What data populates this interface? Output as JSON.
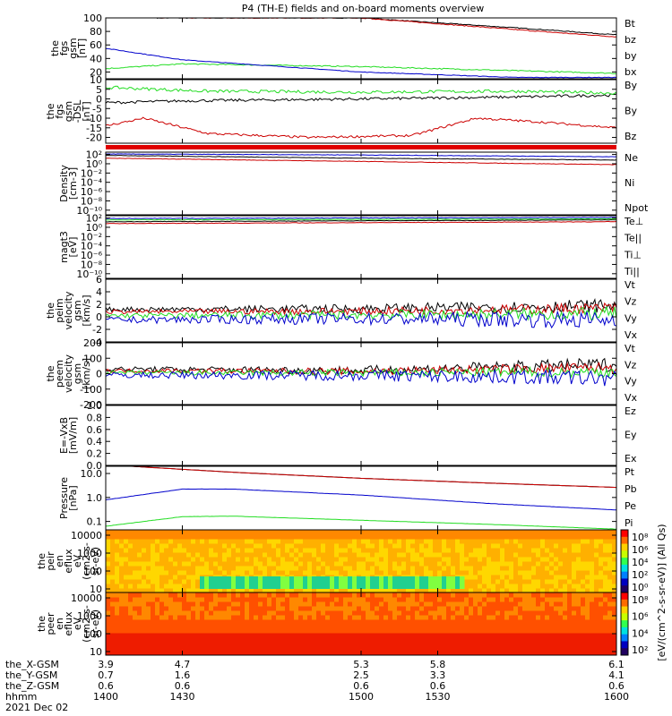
{
  "title": "P4 (TH-E) fields and on-board moments overview",
  "colors": {
    "black": "#000000",
    "red": "#cc0000",
    "green": "#22dd22",
    "blue": "#0000cc"
  },
  "chart_data": [
    {
      "type": "line",
      "id": "fgs",
      "ylabel": [
        "the",
        "fgs",
        "gsm",
        "[nT]"
      ],
      "ylim": [
        10,
        100
      ],
      "yticks": [
        20,
        40,
        60,
        80,
        100
      ],
      "yticklabels": [
        "20",
        "40",
        "60",
        "80",
        "100"
      ],
      "scale": "linear",
      "series": [
        {
          "name": "Bt",
          "color": "black",
          "points": [
            [
              1420,
              100
            ],
            [
              1500,
              100
            ],
            [
              1570,
              83
            ],
            [
              1600,
              75
            ]
          ],
          "noise": 0.6
        },
        {
          "name": "bz",
          "color": "red",
          "points": [
            [
              1420,
              100
            ],
            [
              1500,
              100
            ],
            [
              1570,
              80
            ],
            [
              1600,
              72
            ]
          ],
          "noise": 0.6
        },
        {
          "name": "by",
          "color": "green",
          "points": [
            [
              1400,
              25
            ],
            [
              1430,
              32
            ],
            [
              1500,
              28
            ],
            [
              1600,
              18
            ]
          ],
          "noise": 0.8
        },
        {
          "name": "bx",
          "color": "blue",
          "points": [
            [
              1400,
              55
            ],
            [
              1430,
              38
            ],
            [
              1500,
              20
            ],
            [
              1560,
              12
            ],
            [
              1600,
              12
            ]
          ],
          "noise": 0.4
        }
      ]
    },
    {
      "type": "line",
      "id": "fgs_dsl",
      "ylabel": [
        "the",
        "fgs",
        "gsm",
        "-DSL",
        "[nT]"
      ],
      "ylim": [
        -23,
        10
      ],
      "yticks": [
        -20,
        -15,
        -10,
        -5,
        0,
        5,
        10
      ],
      "yticklabels": [
        "-20",
        "-15",
        "-10",
        "-5",
        "0",
        "5",
        "10"
      ],
      "scale": "linear",
      "series": [
        {
          "name": "By",
          "color": "black",
          "points": [
            [
              1400,
              -2
            ],
            [
              1430,
              -1
            ],
            [
              1500,
              0
            ],
            [
              1560,
              1
            ],
            [
              1600,
              2
            ]
          ],
          "noise": 0.7
        },
        {
          "name": "By",
          "color": "green",
          "points": [
            [
              1400,
              6
            ],
            [
              1440,
              4
            ],
            [
              1500,
              3.5
            ],
            [
              1560,
              4
            ],
            [
              1600,
              3
            ]
          ],
          "noise": 0.8
        },
        {
          "name": "Bz",
          "color": "red",
          "points": [
            [
              1400,
              -14
            ],
            [
              1415,
              -10
            ],
            [
              1440,
              -18
            ],
            [
              1480,
              -20
            ],
            [
              1520,
              -19
            ],
            [
              1545,
              -10
            ],
            [
              1570,
              -12
            ],
            [
              1600,
              -15
            ]
          ],
          "noise": 0.6
        }
      ]
    },
    {
      "type": "line",
      "id": "density",
      "ylabel": [
        "Density",
        "[cm-3]"
      ],
      "ylim": [
        -11,
        2.5
      ],
      "logscale": true,
      "yticks": [
        2,
        0,
        -2,
        -4,
        -6,
        -8,
        -10
      ],
      "yticklabels": [
        "10²",
        "10⁰",
        "10⁻²",
        "10⁻⁴",
        "10⁻⁶",
        "10⁻⁸",
        "10⁻¹⁰"
      ],
      "series": [
        {
          "name": "Ne",
          "color": "red",
          "points": [
            [
              1400,
              1.2
            ],
            [
              1500,
              0.5
            ],
            [
              1600,
              -0.2
            ]
          ],
          "noise": 0.05
        },
        {
          "name": "Ni",
          "color": "black",
          "points": [
            [
              1400,
              1.8
            ],
            [
              1500,
              1.2
            ],
            [
              1600,
              0.8
            ]
          ],
          "noise": 0.05
        },
        {
          "name": "Npot",
          "color": "blue",
          "points": [
            [
              1400,
              2.1
            ],
            [
              1500,
              1.9
            ],
            [
              1600,
              1.5
            ]
          ],
          "noise": 0.05
        }
      ]
    },
    {
      "type": "line",
      "id": "magt3",
      "ylabel": [
        "magt3",
        "[eV]"
      ],
      "ylim": [
        -11,
        2.5
      ],
      "logscale": true,
      "yticks": [
        2,
        0,
        -2,
        -4,
        -6,
        -8,
        -10
      ],
      "yticklabels": [
        "10²",
        "10⁰",
        "10⁻²",
        "10⁻⁴",
        "10⁻⁶",
        "10⁻⁸",
        "10⁻¹⁰"
      ],
      "series": [
        {
          "name": "Te⊥",
          "color": "red",
          "points": [
            [
              1400,
              0.8
            ],
            [
              1500,
              1.0
            ],
            [
              1600,
              1.2
            ]
          ],
          "noise": 0.05
        },
        {
          "name": "Te||",
          "color": "black",
          "points": [
            [
              1400,
              1.2
            ],
            [
              1500,
              1.4
            ],
            [
              1600,
              1.6
            ]
          ],
          "noise": 0.05
        },
        {
          "name": "Ti⊥",
          "color": "blue",
          "points": [
            [
              1400,
              1.9
            ],
            [
              1500,
              2.0
            ],
            [
              1600,
              2.1
            ]
          ],
          "noise": 0.05
        },
        {
          "name": "Ti||",
          "color": "green",
          "points": [
            [
              1400,
              1.6
            ],
            [
              1500,
              1.7
            ],
            [
              1600,
              1.8
            ]
          ],
          "noise": 0.05
        }
      ]
    },
    {
      "type": "line",
      "id": "peim",
      "ylabel": [
        "the",
        "peim",
        "velocity",
        "gsm",
        "[km/s]"
      ],
      "ylim": [
        -4,
        6
      ],
      "yticks": [
        -4,
        -2,
        0,
        2,
        4,
        6
      ],
      "yticklabels": [
        "-4",
        "-2",
        "0",
        "2",
        "4",
        "6"
      ],
      "scale": "linear",
      "series": [
        {
          "name": "Vt",
          "color": "black",
          "points": [
            [
              1400,
              1.2
            ],
            [
              1500,
              1.3
            ],
            [
              1600,
              1.8
            ]
          ],
          "noise": 0.6
        },
        {
          "name": "Vz",
          "color": "red",
          "points": [
            [
              1400,
              0.8
            ],
            [
              1500,
              0.9
            ],
            [
              1600,
              1.4
            ]
          ],
          "noise": 0.5
        },
        {
          "name": "Vy",
          "color": "green",
          "points": [
            [
              1400,
              0.2
            ],
            [
              1500,
              0.3
            ],
            [
              1600,
              0.5
            ]
          ],
          "noise": 0.6
        },
        {
          "name": "Vx",
          "color": "blue",
          "points": [
            [
              1400,
              -0.5
            ],
            [
              1500,
              -0.3
            ],
            [
              1600,
              -0.5
            ]
          ],
          "noise": 0.8
        }
      ]
    },
    {
      "type": "line",
      "id": "peem",
      "ylabel": [
        "the",
        "peem",
        "velocity",
        "gsm",
        "[km/s]"
      ],
      "ylim": [
        -200,
        200
      ],
      "yticks": [
        -200,
        -100,
        0,
        100,
        200
      ],
      "yticklabels": [
        "-200",
        "-100",
        "0",
        "100",
        "200"
      ],
      "scale": "linear",
      "series": [
        {
          "name": "Vt",
          "color": "black",
          "points": [
            [
              1400,
              30
            ],
            [
              1500,
              20
            ],
            [
              1600,
              60
            ]
          ],
          "noise": 25
        },
        {
          "name": "Vz",
          "color": "red",
          "points": [
            [
              1400,
              20
            ],
            [
              1500,
              15
            ],
            [
              1600,
              40
            ]
          ],
          "noise": 20
        },
        {
          "name": "Vy",
          "color": "green",
          "points": [
            [
              1400,
              5
            ],
            [
              1500,
              5
            ],
            [
              1600,
              10
            ]
          ],
          "noise": 20
        },
        {
          "name": "Vx",
          "color": "blue",
          "points": [
            [
              1400,
              -10
            ],
            [
              1500,
              -10
            ],
            [
              1600,
              -30
            ]
          ],
          "noise": 30
        }
      ]
    },
    {
      "type": "line",
      "id": "efield",
      "ylabel": [
        "E=-VxB",
        "[mV/m]"
      ],
      "ylim": [
        0,
        1
      ],
      "yticks": [
        0,
        0.2,
        0.4,
        0.6,
        0.8,
        1.0
      ],
      "yticklabels": [
        "0.0",
        "0.2",
        "0.4",
        "0.6",
        "0.8",
        "1.0"
      ],
      "scale": "linear",
      "series": [
        {
          "name": "Ez",
          "color": "red",
          "points": []
        },
        {
          "name": "Ey",
          "color": "green",
          "points": []
        },
        {
          "name": "Ex",
          "color": "blue",
          "points": []
        }
      ]
    },
    {
      "type": "line",
      "id": "pressure",
      "ylabel": [
        "Pressure",
        "[nPa]"
      ],
      "ylim": [
        -1.35,
        1.3
      ],
      "logscale": true,
      "yticks": [
        1,
        0,
        -1
      ],
      "yticklabels": [
        "10.0",
        "1.0",
        "0.1"
      ],
      "series": [
        {
          "name": "Pt",
          "color": "black",
          "points": [
            [
              1410,
              1.3
            ],
            [
              1450,
              1.05
            ],
            [
              1500,
              0.8
            ],
            [
              1550,
              0.6
            ],
            [
              1600,
              0.42
            ]
          ],
          "noise": 0.004
        },
        {
          "name": "Pb",
          "color": "red",
          "points": [
            [
              1410,
              1.3
            ],
            [
              1450,
              1.05
            ],
            [
              1500,
              0.8
            ],
            [
              1550,
              0.6
            ],
            [
              1600,
              0.42
            ]
          ],
          "noise": 0.004
        },
        {
          "name": "Pe",
          "color": "blue",
          "points": [
            [
              1400,
              -0.1
            ],
            [
              1430,
              0.35
            ],
            [
              1450,
              0.35
            ],
            [
              1500,
              0.1
            ],
            [
              1550,
              -0.25
            ],
            [
              1600,
              -0.52
            ]
          ],
          "noise": 0.004
        },
        {
          "name": "Pi",
          "color": "green",
          "points": [
            [
              1400,
              -1.2
            ],
            [
              1430,
              -0.8
            ],
            [
              1450,
              -0.78
            ],
            [
              1500,
              -0.95
            ],
            [
              1550,
              -1.12
            ],
            [
              1600,
              -1.32
            ]
          ],
          "noise": 0.004
        }
      ]
    },
    {
      "type": "heatmap",
      "id": "peir",
      "ylabel": [
        "the",
        "peir",
        "en",
        "eflux",
        "eV",
        "(cm2-s-",
        "sr-eV)"
      ],
      "ylim": [
        0.8,
        4.3
      ],
      "logscale": true,
      "yticks": [
        1,
        2,
        3,
        4
      ],
      "yticklabels": [
        "10",
        "100",
        "1000",
        "10000"
      ],
      "colorbar": {
        "ticks": [
          "10⁸",
          "10⁶",
          "10⁴",
          "10²",
          "10⁰"
        ]
      }
    },
    {
      "type": "heatmap",
      "id": "peer",
      "ylabel": [
        "the",
        "peer",
        "en",
        "eflux",
        "eV",
        "(cm2-s-",
        "sr-eV)"
      ],
      "ylim": [
        0.8,
        4.3
      ],
      "logscale": true,
      "yticks": [
        1,
        2,
        3,
        4
      ],
      "yticklabels": [
        "10",
        "100",
        "1000",
        "10000"
      ],
      "colorbar": {
        "ticks": [
          "10⁸",
          "10⁶",
          "10⁴",
          "10²"
        ]
      }
    }
  ],
  "colorbar_label": "[eV/(cm^2-s-sr-eV)] (All Qs)",
  "x_axis": {
    "range": [
      1400,
      1600
    ],
    "ticks": [
      1400,
      1430,
      1500,
      1530,
      1600
    ],
    "rows": [
      {
        "label": "the_X-GSM",
        "values": [
          "3.9",
          "4.7",
          "5.3",
          "5.8",
          "6.1"
        ]
      },
      {
        "label": "the_Y-GSM",
        "values": [
          "0.7",
          "1.6",
          "2.5",
          "3.3",
          "4.1"
        ]
      },
      {
        "label": "the_Z-GSM",
        "values": [
          "0.6",
          "0.6",
          "0.6",
          "0.6",
          "0.6"
        ]
      },
      {
        "label": "hhmm",
        "values": [
          "1400",
          "1430",
          "1500",
          "1530",
          "1600"
        ]
      }
    ],
    "date": "2021 Dec 02"
  }
}
